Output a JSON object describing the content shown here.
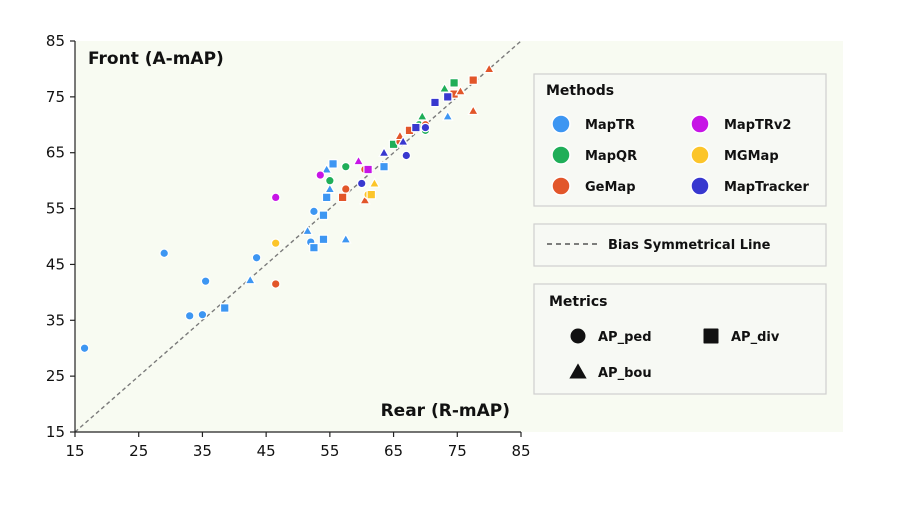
{
  "chart_data": {
    "type": "scatter",
    "x_corner_label": "Rear (R-mAP)",
    "y_corner_label": "Front (A-mAP)",
    "xlim": [
      15,
      85
    ],
    "ylim": [
      15,
      85
    ],
    "xticks": [
      15,
      25,
      35,
      45,
      55,
      65,
      75,
      85
    ],
    "yticks": [
      15,
      25,
      35,
      45,
      55,
      65,
      75,
      85
    ],
    "grid": false,
    "methods_legend_title": "Methods",
    "metrics_legend_title": "Metrics",
    "bias_line_label": "Bias Symmetrical Line",
    "bias_line": [
      [
        15,
        15
      ],
      [
        85,
        85
      ]
    ],
    "methods": [
      {
        "name": "MapTR",
        "color": "#3d96f2"
      },
      {
        "name": "MapQR",
        "color": "#1fae58"
      },
      {
        "name": "GeMap",
        "color": "#e2562a"
      },
      {
        "name": "MapTRv2",
        "color": "#c715e6"
      },
      {
        "name": "MGMap",
        "color": "#fcc52a"
      },
      {
        "name": "MapTracker",
        "color": "#3838cf"
      }
    ],
    "metrics": [
      {
        "name": "AP_ped",
        "marker": "circle"
      },
      {
        "name": "AP_div",
        "marker": "square"
      },
      {
        "name": "AP_bou",
        "marker": "triangle"
      }
    ],
    "series": [
      {
        "method": "MapTR",
        "metric": "AP_ped",
        "points": [
          [
            16.5,
            30
          ],
          [
            29,
            47
          ],
          [
            35.5,
            42
          ],
          [
            33,
            35.8
          ],
          [
            35,
            36
          ],
          [
            43.5,
            46.2
          ],
          [
            52.5,
            54.5
          ],
          [
            52,
            49
          ]
        ]
      },
      {
        "method": "MapTR",
        "metric": "AP_div",
        "points": [
          [
            38.5,
            37.2
          ],
          [
            52.5,
            48
          ],
          [
            54,
            49.5
          ],
          [
            54,
            53.8
          ],
          [
            54.5,
            57
          ],
          [
            55.5,
            63
          ],
          [
            63.5,
            62.5
          ]
        ]
      },
      {
        "method": "MapTR",
        "metric": "AP_bou",
        "points": [
          [
            42.5,
            42.2
          ],
          [
            51.5,
            51
          ],
          [
            57.5,
            49.5
          ],
          [
            55,
            58.5
          ],
          [
            54.5,
            62
          ],
          [
            73.5,
            71.5
          ]
        ]
      },
      {
        "method": "MapQR",
        "metric": "AP_ped",
        "points": [
          [
            57.5,
            62.5
          ],
          [
            55,
            60
          ],
          [
            70,
            69
          ],
          [
            69,
            70
          ]
        ]
      },
      {
        "method": "MapQR",
        "metric": "AP_div",
        "points": [
          [
            65,
            66.5
          ],
          [
            74.5,
            77.5
          ]
        ]
      },
      {
        "method": "MapQR",
        "metric": "AP_bou",
        "points": [
          [
            69.5,
            71.5
          ],
          [
            73,
            76.5
          ]
        ]
      },
      {
        "method": "GeMap",
        "metric": "AP_ped",
        "points": [
          [
            46.5,
            41.5
          ],
          [
            57.5,
            58.5
          ],
          [
            60.5,
            62
          ],
          [
            66,
            67
          ],
          [
            70,
            70
          ]
        ]
      },
      {
        "method": "GeMap",
        "metric": "AP_div",
        "points": [
          [
            57,
            57
          ],
          [
            67.5,
            69
          ],
          [
            74.5,
            75.5
          ],
          [
            77.5,
            78
          ]
        ]
      },
      {
        "method": "GeMap",
        "metric": "AP_bou",
        "points": [
          [
            60.5,
            56.5
          ],
          [
            66,
            68
          ],
          [
            75.5,
            76
          ],
          [
            77.5,
            72.5
          ],
          [
            80,
            80
          ]
        ]
      },
      {
        "method": "MapTRv2",
        "metric": "AP_ped",
        "points": [
          [
            46.5,
            57
          ],
          [
            53.5,
            61
          ]
        ]
      },
      {
        "method": "MapTRv2",
        "metric": "AP_div",
        "points": [
          [
            61,
            62
          ]
        ]
      },
      {
        "method": "MapTRv2",
        "metric": "AP_bou",
        "points": [
          [
            59.5,
            63.5
          ]
        ]
      },
      {
        "method": "MGMap",
        "metric": "AP_ped",
        "points": [
          [
            46.5,
            48.8
          ],
          [
            61,
            57.5
          ]
        ]
      },
      {
        "method": "MGMap",
        "metric": "AP_div",
        "points": [
          [
            61.5,
            57.5
          ]
        ]
      },
      {
        "method": "MGMap",
        "metric": "AP_bou",
        "points": [
          [
            62,
            59.5
          ]
        ]
      },
      {
        "method": "MapTracker",
        "metric": "AP_ped",
        "points": [
          [
            60,
            59.5
          ],
          [
            67,
            64.5
          ],
          [
            70,
            69.5
          ]
        ]
      },
      {
        "method": "MapTracker",
        "metric": "AP_div",
        "points": [
          [
            68.5,
            69.5
          ],
          [
            71.5,
            74
          ],
          [
            73.5,
            75
          ]
        ]
      },
      {
        "method": "MapTracker",
        "metric": "AP_bou",
        "points": [
          [
            63.5,
            65
          ],
          [
            66.5,
            67
          ]
        ]
      }
    ]
  }
}
